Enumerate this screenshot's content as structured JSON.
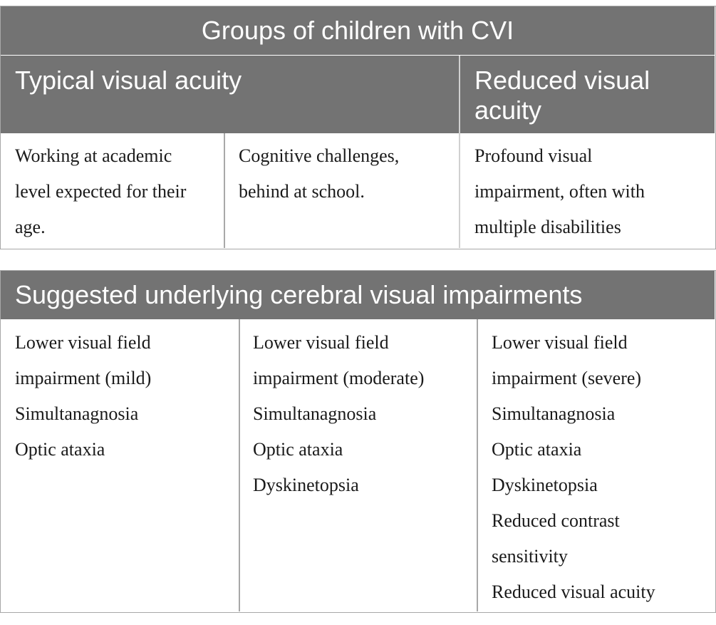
{
  "table1": {
    "title": "Groups of children with CVI",
    "left_header": "Typical visual acuity",
    "right_header": "Reduced visual\nacuity",
    "cells": [
      "Working at academic\nlevel expected for their\nage.",
      "Cognitive challenges,\nbehind at school.",
      "Profound visual\nimpairment, often with\nmultiple disabilities"
    ]
  },
  "table2": {
    "title": "Suggested underlying cerebral visual impairments",
    "cells": [
      "Lower visual field\nimpairment (mild)\nSimultanagnosia\nOptic ataxia",
      "Lower visual field\nimpairment (moderate)\nSimultanagnosia\nOptic ataxia\nDyskinetopsia",
      "Lower visual field\nimpairment (severe)\nSimultanagnosia\nOptic ataxia\nDyskinetopsia\nReduced contrast\nsensitivity\nReduced visual acuity"
    ]
  },
  "colors": {
    "header_bg": "#737373",
    "header_text": "#ffffff",
    "border": "#a8a8a8"
  }
}
